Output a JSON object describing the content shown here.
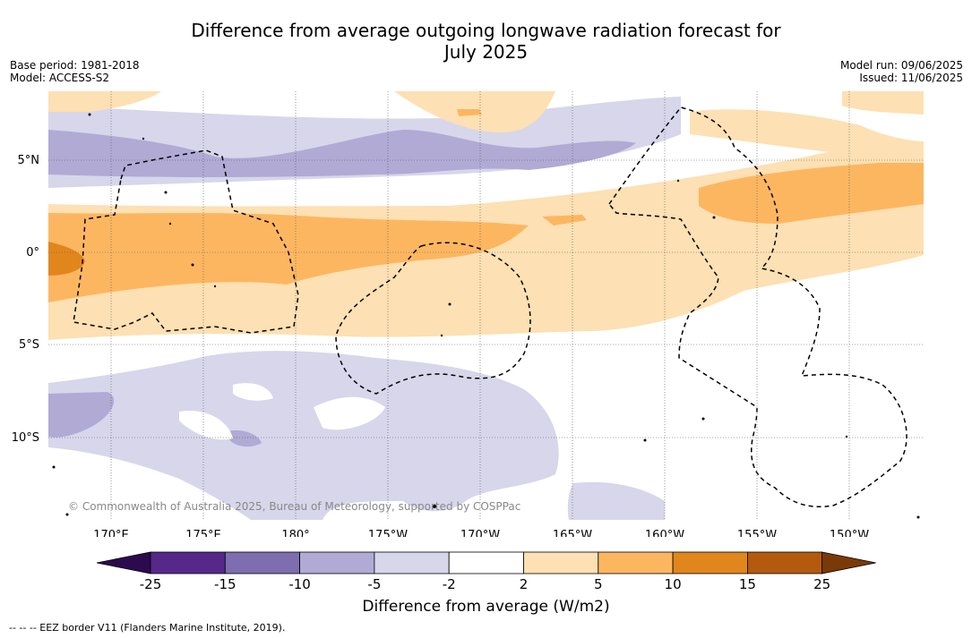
{
  "title_line1": "Difference from average outgoing longwave radiation forecast for",
  "title_line2": "July 2025",
  "meta_left": [
    "Base period: 1981-2018",
    "Model: ACCESS-S2"
  ],
  "meta_right": [
    "Model run: 09/06/2025",
    "Issued: 11/06/2025"
  ],
  "lat_labels": [
    "5°N",
    "0°",
    "5°S",
    "10°S"
  ],
  "lon_labels": [
    "170°E",
    "175°E",
    "180°",
    "175°W",
    "170°W",
    "165°W",
    "160°W",
    "155°W",
    "150°W"
  ],
  "copyright": "© Commonwealth of Australia 2025, Bureau of Meteorology, supported by COSPPac",
  "colorbar": {
    "title": "Difference from average (W/m2)",
    "ticks": [
      "-25",
      "-15",
      "-10",
      "-5",
      "-2",
      "2",
      "5",
      "10",
      "15",
      "25"
    ],
    "colors": [
      "#2d0a4e",
      "#55288a",
      "#7e6eb0",
      "#b0aad5",
      "#d7d6eb",
      "#ffffff",
      "#fde0b3",
      "#fdb660",
      "#e1861c",
      "#b45a0e",
      "#7a3a08"
    ]
  },
  "footnote": "-- -- -- EEZ border V11 (Flanders Marine Institute, 2019)."
}
